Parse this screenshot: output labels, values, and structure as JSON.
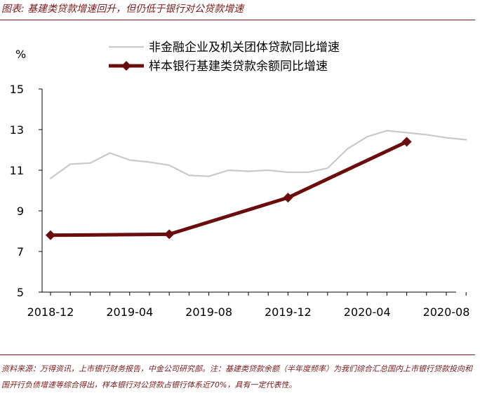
{
  "header": {
    "title": "图表: 基建类贷款增速回升，但仍低于银行对公贷款增速"
  },
  "footer": {
    "source": "资料来源：万得资讯，上市银行财务报告，中金公司研究部。注：基建类贷款余额（半年度频率）为我们综合汇总国内上市银行贷款投向和国开行负债增速等综合得出，样本银行对公贷款占银行体系近70%，具有一定代表性。"
  },
  "chart_data": {
    "type": "line",
    "title": "",
    "ylabel": "%",
    "xlabel": "",
    "ylim": [
      5,
      15
    ],
    "yticks": [
      "5",
      "7",
      "9",
      "11",
      "13",
      "15"
    ],
    "x_tick_labels": [
      "2018-12",
      "2019-04",
      "2019-08",
      "2019-12",
      "2020-04",
      "2020-08"
    ],
    "x_period": {
      "start": "2018-12",
      "end": "2020-09"
    },
    "legend_position": "top-center",
    "grid": false,
    "series": [
      {
        "name": "非金融企业及机关团体贷款同比增速",
        "color": "#c9c9c9",
        "marker": "none",
        "x": [
          "2018-12",
          "2019-01",
          "2019-02",
          "2019-03",
          "2019-04",
          "2019-05",
          "2019-06",
          "2019-07",
          "2019-08",
          "2019-09",
          "2019-10",
          "2019-11",
          "2019-12",
          "2020-01",
          "2020-02",
          "2020-03",
          "2020-04",
          "2020-05",
          "2020-06",
          "2020-07",
          "2020-08",
          "2020-09"
        ],
        "values": [
          10.6,
          11.3,
          11.35,
          11.85,
          11.5,
          11.4,
          11.25,
          10.75,
          10.7,
          11.0,
          10.95,
          11.0,
          10.9,
          10.9,
          11.1,
          12.05,
          12.65,
          12.95,
          12.85,
          12.75,
          12.6,
          12.5
        ]
      },
      {
        "name": "样本银行基建类贷款余额同比增速",
        "color": "#6b0d0d",
        "marker": "diamond",
        "x": [
          "2018-12",
          "2019-06",
          "2019-12",
          "2020-06"
        ],
        "values": [
          7.8,
          7.85,
          9.65,
          12.4
        ]
      }
    ]
  }
}
